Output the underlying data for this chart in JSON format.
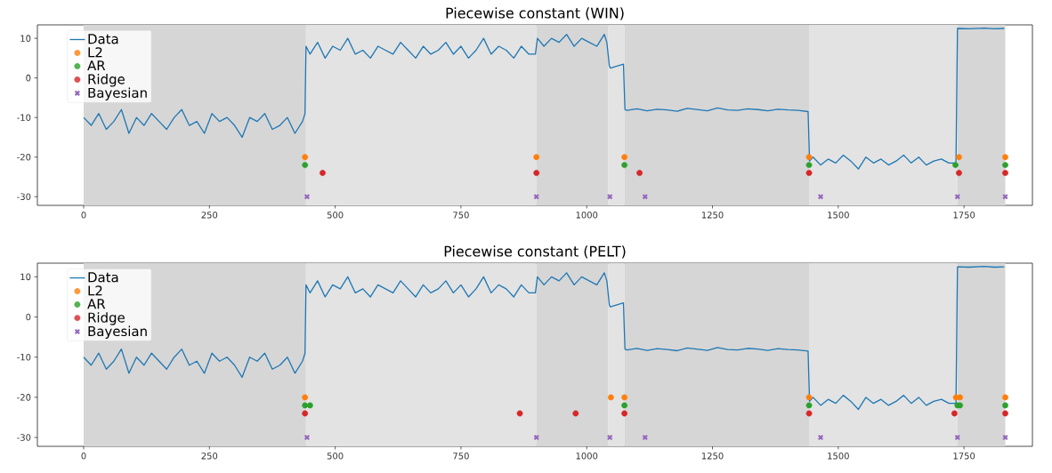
{
  "chart_data": [
    {
      "type": "line",
      "title": "Piecewise constant (WIN)",
      "xlim": [
        -92,
        1886
      ],
      "ylim": [
        -32.2,
        13.4
      ],
      "xticks": [
        0,
        250,
        500,
        750,
        1000,
        1250,
        1500,
        1750
      ],
      "yticks": [
        -30,
        -20,
        -10,
        0,
        10
      ],
      "legend": "top left",
      "bands": [
        {
          "axis": "x",
          "from": 0,
          "to": 442,
          "color": "#d6d6d6"
        },
        {
          "axis": "x",
          "from": 442,
          "to": 900,
          "color": "#e3e3e3"
        },
        {
          "axis": "x",
          "from": 900,
          "to": 1043,
          "color": "#d6d6d6"
        },
        {
          "axis": "x",
          "from": 1043,
          "to": 1075,
          "color": "#e3e3e3"
        },
        {
          "axis": "x",
          "from": 1075,
          "to": 1442,
          "color": "#d6d6d6"
        },
        {
          "axis": "x",
          "from": 1442,
          "to": 1737,
          "color": "#e3e3e3"
        },
        {
          "axis": "x",
          "from": 1737,
          "to": 1832,
          "color": "#d6d6d6"
        }
      ],
      "series": [
        {
          "name": "Data",
          "color": "#1f77b4",
          "marker": "none",
          "x": [
            0,
            15,
            30,
            45,
            60,
            75,
            90,
            105,
            120,
            135,
            150,
            165,
            180,
            195,
            210,
            225,
            240,
            255,
            270,
            285,
            300,
            315,
            330,
            345,
            360,
            375,
            390,
            405,
            420,
            435,
            440,
            442,
            450,
            465,
            480,
            495,
            510,
            525,
            540,
            555,
            570,
            585,
            600,
            615,
            630,
            645,
            660,
            675,
            690,
            705,
            720,
            735,
            750,
            765,
            780,
            795,
            810,
            825,
            840,
            855,
            870,
            885,
            898,
            902,
            915,
            930,
            945,
            960,
            975,
            990,
            1005,
            1020,
            1035,
            1040,
            1045,
            1047,
            1060,
            1073,
            1076,
            1080,
            1100,
            1120,
            1140,
            1160,
            1180,
            1200,
            1220,
            1240,
            1260,
            1280,
            1300,
            1320,
            1340,
            1360,
            1380,
            1400,
            1420,
            1440,
            1443,
            1450,
            1465,
            1480,
            1495,
            1510,
            1525,
            1540,
            1555,
            1570,
            1585,
            1600,
            1615,
            1630,
            1645,
            1660,
            1675,
            1690,
            1705,
            1720,
            1734,
            1737,
            1760,
            1790,
            1810,
            1830
          ],
          "values": [
            -10,
            -12,
            -9,
            -13,
            -11,
            -8,
            -14,
            -10,
            -12,
            -9,
            -11,
            -13,
            -10,
            -8,
            -12,
            -11,
            -14,
            -9,
            -11,
            -10,
            -12,
            -15,
            -10,
            -11,
            -9,
            -13,
            -12,
            -10,
            -14,
            -11,
            -9,
            8,
            6,
            9,
            5,
            8,
            7,
            10,
            6,
            7,
            5,
            8,
            7,
            6,
            9,
            7,
            5,
            8,
            6,
            7,
            9,
            6,
            8,
            5,
            7,
            10,
            6,
            8,
            7,
            5,
            8,
            6,
            6,
            10,
            8,
            10,
            9,
            11,
            8,
            10,
            9,
            8,
            11,
            9,
            3,
            2.5,
            3,
            3.5,
            -8,
            -8.2,
            -7.8,
            -8.3,
            -7.9,
            -8.1,
            -8.4,
            -7.7,
            -8,
            -8.3,
            -7.6,
            -8.1,
            -8.2,
            -7.8,
            -8,
            -8.3,
            -7.9,
            -8.1,
            -8.2,
            -8.5,
            -21,
            -20,
            -22,
            -20.5,
            -21.5,
            -19.5,
            -21,
            -23,
            -20,
            -21.5,
            -20.5,
            -22,
            -21,
            -19.5,
            -21.5,
            -20,
            -22,
            -21,
            -20.5,
            -21.5,
            -21.5,
            12.5,
            12.4,
            12.6,
            12.4,
            12.5
          ]
        },
        {
          "name": "L2",
          "type": "scatter",
          "color": "#ff7f0e",
          "marker": "circle",
          "x": [
            440,
            900,
            1075,
            1442,
            1740,
            1832
          ],
          "values": [
            -20,
            -20,
            -20,
            -20,
            -20,
            -20
          ]
        },
        {
          "name": "AR",
          "type": "scatter",
          "color": "#2ca02c",
          "marker": "circle",
          "x": [
            440,
            1075,
            1442,
            1733,
            1832
          ],
          "values": [
            -22,
            -22,
            -22,
            -22,
            -22
          ]
        },
        {
          "name": "Ridge",
          "type": "scatter",
          "color": "#d62728",
          "marker": "circle",
          "x": [
            475,
            900,
            1105,
            1442,
            1740,
            1832
          ],
          "values": [
            -24,
            -24,
            -24,
            -24,
            -24,
            -24
          ]
        },
        {
          "name": "Bayesian",
          "type": "scatter",
          "color": "#9467bd",
          "marker": "cross",
          "x": [
            444,
            900,
            1046,
            1116,
            1465,
            1737,
            1832
          ],
          "values": [
            -30,
            -30,
            -30,
            -30,
            -30,
            -30,
            -30
          ]
        }
      ]
    },
    {
      "type": "line",
      "title": "Piecewise constant (PELT)",
      "xlim": [
        -92,
        1886
      ],
      "ylim": [
        -32.2,
        13.4
      ],
      "xticks": [
        0,
        250,
        500,
        750,
        1000,
        1250,
        1500,
        1750
      ],
      "yticks": [
        -30,
        -20,
        -10,
        0,
        10
      ],
      "legend": "top left",
      "bands": [
        {
          "axis": "x",
          "from": 0,
          "to": 442,
          "color": "#d6d6d6"
        },
        {
          "axis": "x",
          "from": 442,
          "to": 900,
          "color": "#e3e3e3"
        },
        {
          "axis": "x",
          "from": 900,
          "to": 1043,
          "color": "#d6d6d6"
        },
        {
          "axis": "x",
          "from": 1043,
          "to": 1075,
          "color": "#e3e3e3"
        },
        {
          "axis": "x",
          "from": 1075,
          "to": 1442,
          "color": "#d6d6d6"
        },
        {
          "axis": "x",
          "from": 1442,
          "to": 1737,
          "color": "#e3e3e3"
        },
        {
          "axis": "x",
          "from": 1737,
          "to": 1832,
          "color": "#d6d6d6"
        }
      ],
      "series": [
        {
          "name": "Data",
          "color": "#1f77b4",
          "marker": "none",
          "x": [
            0,
            15,
            30,
            45,
            60,
            75,
            90,
            105,
            120,
            135,
            150,
            165,
            180,
            195,
            210,
            225,
            240,
            255,
            270,
            285,
            300,
            315,
            330,
            345,
            360,
            375,
            390,
            405,
            420,
            435,
            440,
            442,
            450,
            465,
            480,
            495,
            510,
            525,
            540,
            555,
            570,
            585,
            600,
            615,
            630,
            645,
            660,
            675,
            690,
            705,
            720,
            735,
            750,
            765,
            780,
            795,
            810,
            825,
            840,
            855,
            870,
            885,
            898,
            902,
            915,
            930,
            945,
            960,
            975,
            990,
            1005,
            1020,
            1035,
            1040,
            1045,
            1047,
            1060,
            1073,
            1076,
            1080,
            1100,
            1120,
            1140,
            1160,
            1180,
            1200,
            1220,
            1240,
            1260,
            1280,
            1300,
            1320,
            1340,
            1360,
            1380,
            1400,
            1420,
            1440,
            1443,
            1450,
            1465,
            1480,
            1495,
            1510,
            1525,
            1540,
            1555,
            1570,
            1585,
            1600,
            1615,
            1630,
            1645,
            1660,
            1675,
            1690,
            1705,
            1720,
            1734,
            1737,
            1760,
            1790,
            1810,
            1830
          ],
          "values": [
            -10,
            -12,
            -9,
            -13,
            -11,
            -8,
            -14,
            -10,
            -12,
            -9,
            -11,
            -13,
            -10,
            -8,
            -12,
            -11,
            -14,
            -9,
            -11,
            -10,
            -12,
            -15,
            -10,
            -11,
            -9,
            -13,
            -12,
            -10,
            -14,
            -11,
            -9,
            8,
            6,
            9,
            5,
            8,
            7,
            10,
            6,
            7,
            5,
            8,
            7,
            6,
            9,
            7,
            5,
            8,
            6,
            7,
            9,
            6,
            8,
            5,
            7,
            10,
            6,
            8,
            7,
            5,
            8,
            6,
            6,
            10,
            8,
            10,
            9,
            11,
            8,
            10,
            9,
            8,
            11,
            9,
            3,
            2.5,
            3,
            3.5,
            -8,
            -8.2,
            -7.8,
            -8.3,
            -7.9,
            -8.1,
            -8.4,
            -7.7,
            -8,
            -8.3,
            -7.6,
            -8.1,
            -8.2,
            -7.8,
            -8,
            -8.3,
            -7.9,
            -8.1,
            -8.2,
            -8.5,
            -21,
            -20,
            -22,
            -20.5,
            -21.5,
            -19.5,
            -21,
            -23,
            -20,
            -21.5,
            -20.5,
            -22,
            -21,
            -19.5,
            -21.5,
            -20,
            -22,
            -21,
            -20.5,
            -21.5,
            -21.5,
            12.5,
            12.4,
            12.6,
            12.4,
            12.5
          ]
        },
        {
          "name": "L2",
          "type": "scatter",
          "color": "#ff7f0e",
          "marker": "circle",
          "x": [
            440,
            1048,
            1075,
            1442,
            1734,
            1742,
            1832
          ],
          "values": [
            -20,
            -20,
            -20,
            -20,
            -20,
            -20,
            -20
          ]
        },
        {
          "name": "AR",
          "type": "scatter",
          "color": "#2ca02c",
          "marker": "circle",
          "x": [
            440,
            450,
            1075,
            1442,
            1737,
            1742,
            1832
          ],
          "values": [
            -22,
            -22,
            -22,
            -22,
            -22,
            -22,
            -22
          ]
        },
        {
          "name": "Ridge",
          "type": "scatter",
          "color": "#d62728",
          "marker": "circle",
          "x": [
            440,
            867,
            978,
            1075,
            1442,
            1731,
            1832
          ],
          "values": [
            -24,
            -24,
            -24,
            -24,
            -24,
            -24,
            -24
          ]
        },
        {
          "name": "Bayesian",
          "type": "scatter",
          "color": "#9467bd",
          "marker": "cross",
          "x": [
            444,
            900,
            1046,
            1116,
            1465,
            1737,
            1832
          ],
          "values": [
            -30,
            -30,
            -30,
            -30,
            -30,
            -30,
            -30
          ]
        }
      ]
    }
  ]
}
